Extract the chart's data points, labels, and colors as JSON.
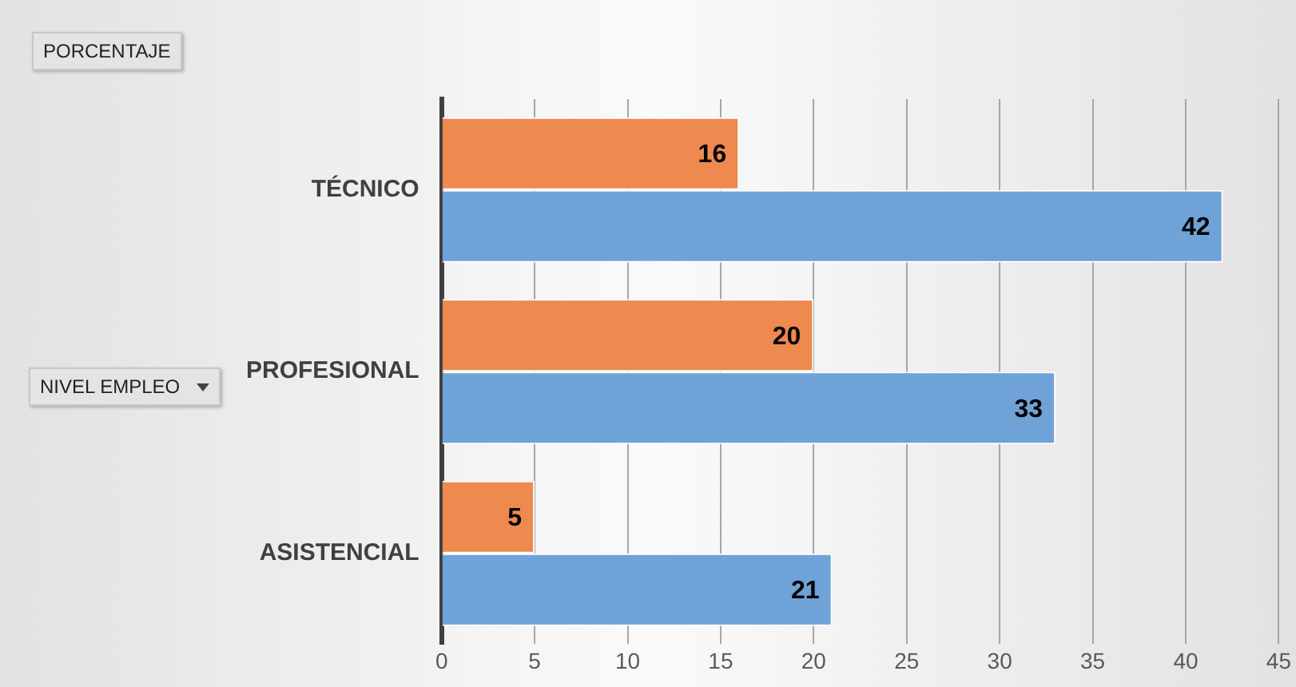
{
  "chart_data": {
    "type": "bar",
    "orientation": "horizontal",
    "title": "PORCENTAJE",
    "ylabel": "NIVEL EMPLEO",
    "categories": [
      "TÉCNICO",
      "PROFESIONAL",
      "ASISTENCIAL"
    ],
    "series": [
      {
        "color": "#ee8a4f",
        "values": [
          16,
          20,
          5
        ]
      },
      {
        "color": "#6fa3d8",
        "values": [
          42,
          33,
          21
        ]
      }
    ],
    "xlim": [
      0,
      45
    ],
    "xticks": [
      0,
      5,
      10,
      15,
      20,
      25,
      30,
      35,
      40,
      45
    ],
    "grid": "x",
    "data_labels": true,
    "legend": false
  }
}
